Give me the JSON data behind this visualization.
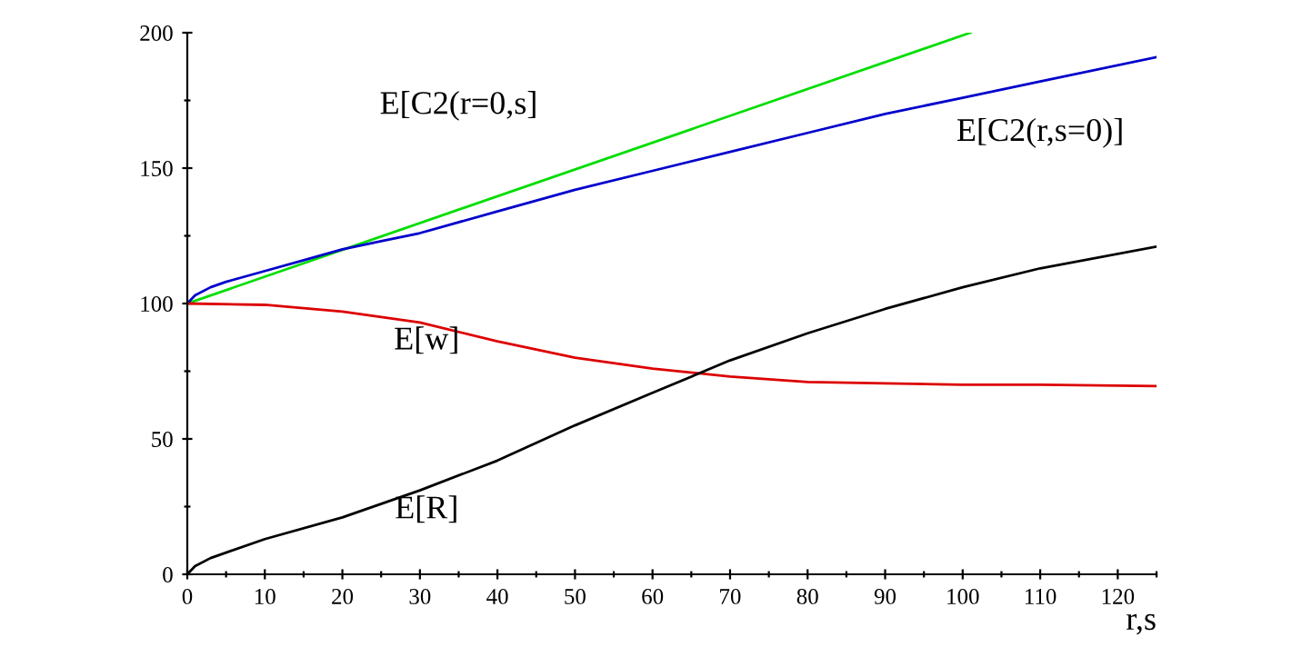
{
  "chart_data": {
    "type": "line",
    "xlabel": "r,s",
    "xlim": [
      0,
      125
    ],
    "ylim": [
      0,
      200
    ],
    "xticks": [
      0,
      {
        "value": 5,
        "label": null
      },
      10,
      {
        "value": 15,
        "label": null
      },
      20,
      {
        "value": 25,
        "label": null
      },
      30,
      {
        "value": 35,
        "label": null
      },
      40,
      {
        "value": 45,
        "label": null
      },
      50,
      {
        "value": 55,
        "label": null
      },
      60,
      {
        "value": 65,
        "label": null
      },
      70,
      {
        "value": 75,
        "label": null
      },
      80,
      {
        "value": 85,
        "label": null
      },
      90,
      {
        "value": 95,
        "label": null
      },
      100,
      {
        "value": 105,
        "label": null
      },
      110,
      {
        "value": 115,
        "label": null
      },
      120,
      {
        "value": 125,
        "label": null
      }
    ],
    "yticks": [
      0,
      {
        "value": 25,
        "label": null
      },
      50,
      {
        "value": 75,
        "label": null
      },
      100,
      {
        "value": 125,
        "label": null
      },
      150,
      {
        "value": 175,
        "label": null
      },
      200
    ],
    "grid": false,
    "legend": false,
    "marker": "none",
    "line_style": "solid",
    "series": [
      {
        "name": "E[C2(r=0,s]",
        "color": "#00dd00",
        "x": [
          0,
          101
        ],
        "values": [
          100,
          200
        ]
      },
      {
        "name": "E[C2(r,s=0)]",
        "color": "#0000cc",
        "x": [
          0,
          1,
          3,
          5,
          10,
          15,
          20,
          25,
          30,
          40,
          50,
          60,
          70,
          80,
          90,
          100,
          110,
          125
        ],
        "values": [
          100,
          103,
          106,
          108,
          112,
          116,
          120,
          123,
          126,
          134,
          142,
          149,
          156,
          163,
          170,
          176,
          182,
          191
        ]
      },
      {
        "name": "E[w]",
        "color": "#dd0000",
        "x": [
          0,
          10,
          20,
          30,
          40,
          50,
          60,
          70,
          80,
          90,
          100,
          110,
          125
        ],
        "values": [
          100,
          99.5,
          97,
          93,
          86,
          80,
          76,
          73,
          71,
          70.5,
          70,
          70,
          69.5
        ]
      },
      {
        "name": "E[R]",
        "color": "#000000",
        "x": [
          0,
          1,
          3,
          5,
          10,
          20,
          30,
          40,
          50,
          60,
          70,
          80,
          90,
          100,
          110,
          125
        ],
        "values": [
          0,
          3,
          6,
          8,
          13,
          21,
          31,
          42,
          55,
          67,
          79,
          89,
          98,
          106,
          113,
          121
        ]
      }
    ]
  }
}
